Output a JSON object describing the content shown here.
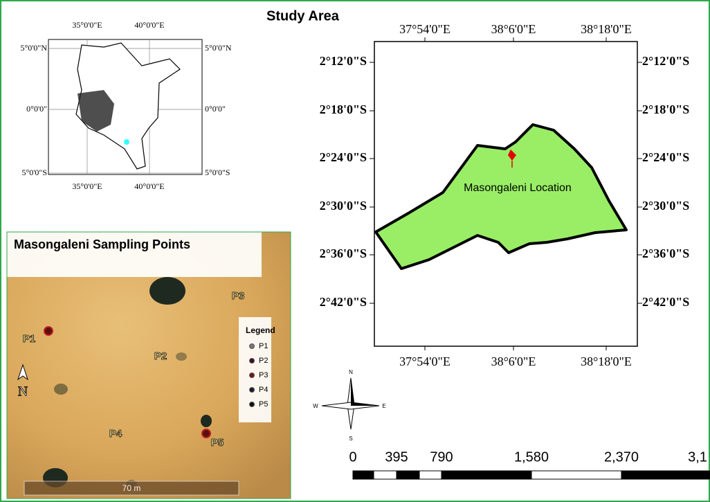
{
  "title": "Study Area",
  "inset_map": {
    "x_labels": [
      "35°0'0\"E",
      "40°0'0\"E"
    ],
    "y_labels": [
      "5°0'0\"N",
      "0°0'0\"",
      "5°0'0\"S"
    ]
  },
  "main_map": {
    "x_labels": [
      "37°54'0\"E",
      "38°6'0\"E",
      "38°18'0\"E"
    ],
    "y_labels": [
      "2°12'0\"S",
      "2°18'0\"S",
      "2°24'0\"S",
      "2°30'0\"S",
      "2°36'0\"S",
      "2°42'0\"S"
    ],
    "location_label": "Masongaleni Location"
  },
  "compass": {
    "n": "N",
    "s": "S",
    "w": "W",
    "e": "E"
  },
  "scale_bar": {
    "labels": [
      "0",
      "395",
      "790",
      "1,580",
      "2,370",
      "3,1"
    ]
  },
  "sampling_map": {
    "title": "Masongaleni Sampling Points",
    "legend_title": "Legend",
    "points": [
      "P1",
      "P2",
      "P3",
      "P4",
      "P5"
    ],
    "north": "N",
    "scale_label": "70 m"
  }
}
